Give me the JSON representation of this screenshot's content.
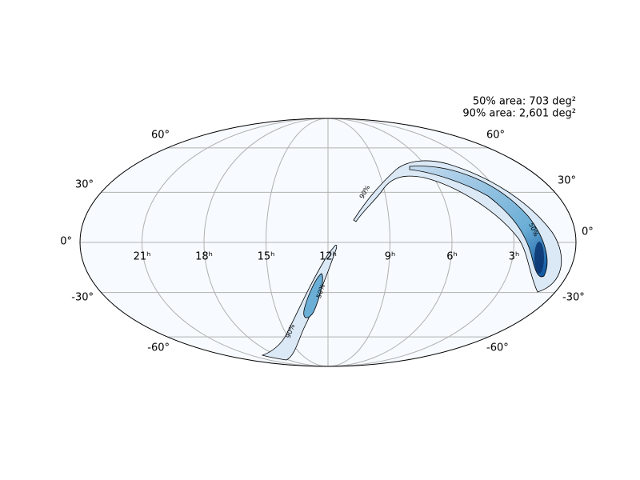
{
  "map": {
    "annotations": {
      "area_50": "50% area: 703 deg²",
      "area_90": "90% area: 2,601 deg²"
    },
    "ra_labels": [
      "21ʰ",
      "18ʰ",
      "15ʰ",
      "12ʰ",
      "9ʰ",
      "6ʰ",
      "3ʰ"
    ],
    "dec_labels_left": [
      "60°",
      "30°",
      "0°",
      "-30°",
      "-60°"
    ],
    "dec_labels_right": [
      "60°",
      "30°",
      "0°",
      "-30°",
      "-60°"
    ],
    "contour_labels": [
      "90%",
      "50%",
      "50%",
      "90%"
    ]
  }
}
